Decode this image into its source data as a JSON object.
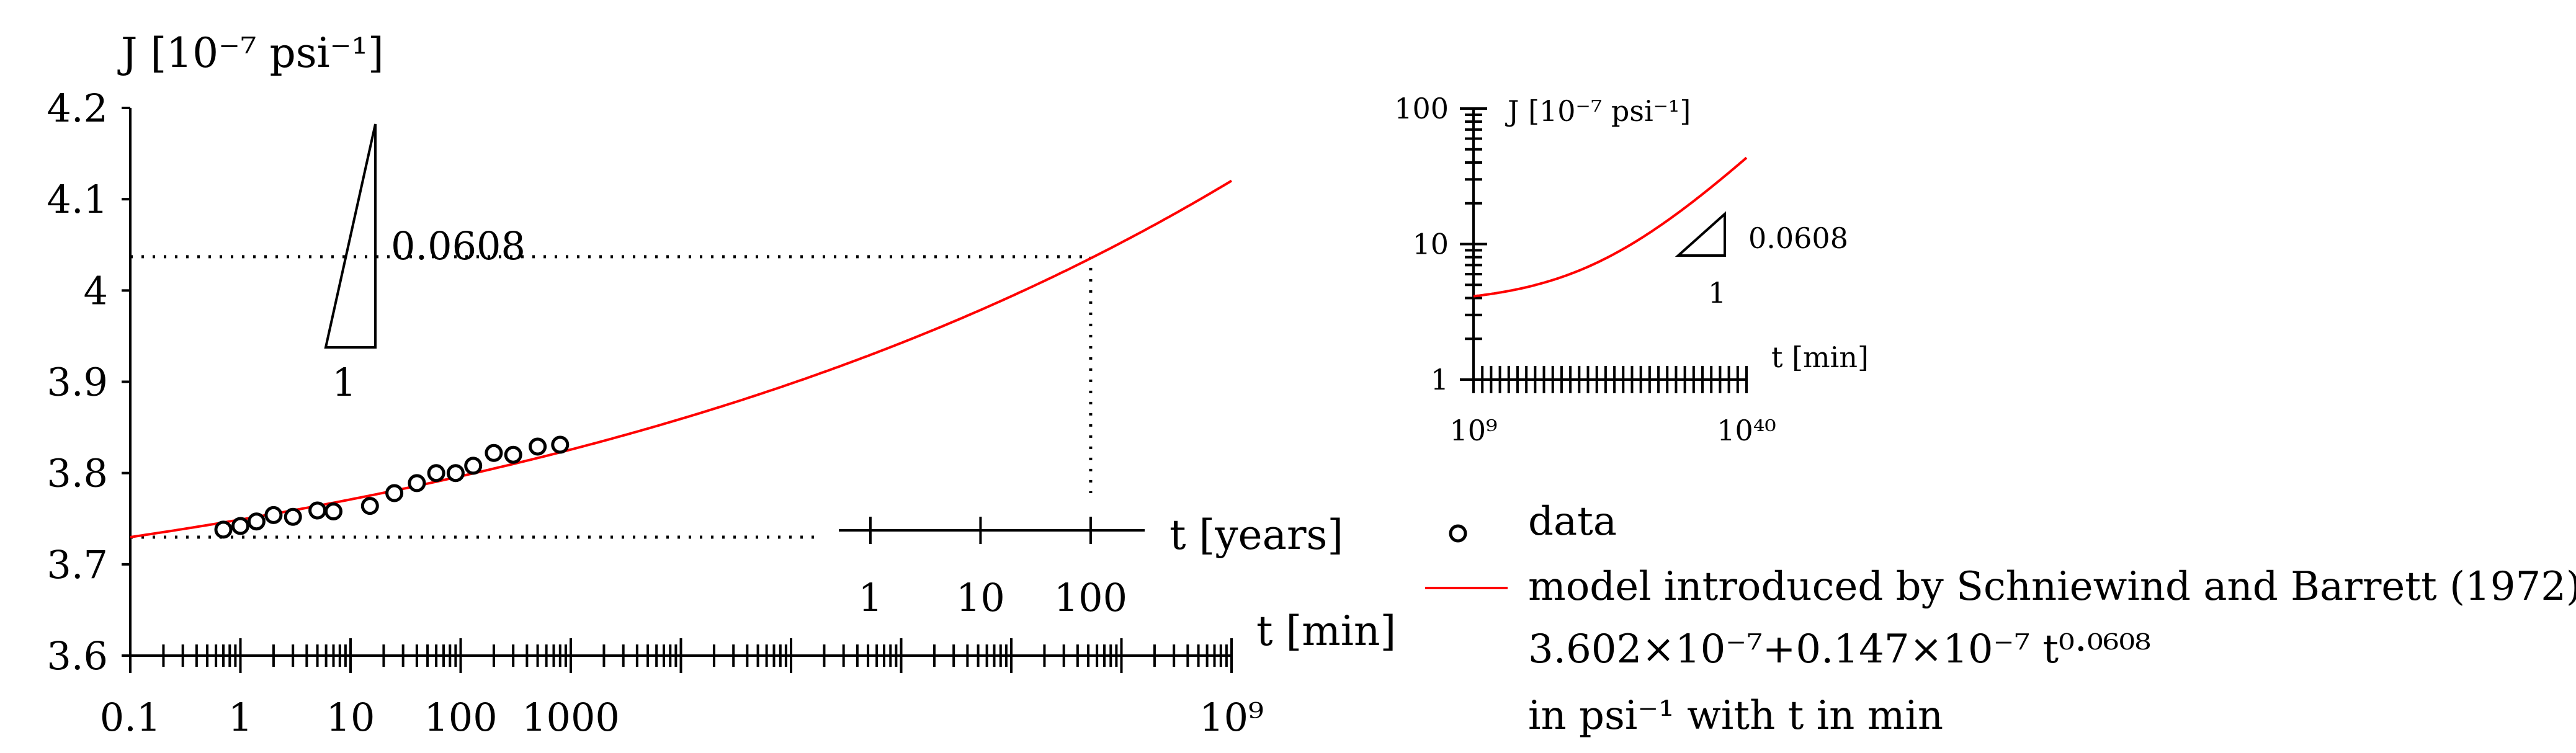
{
  "chart_data": [
    {
      "type": "scatter",
      "name": "main",
      "ylabel": "J [10⁻⁷ psi⁻¹]",
      "xlabel": "t [min]",
      "xscale": "log",
      "xlim": [
        0.1,
        1000000000
      ],
      "ylim": [
        3.6,
        4.2
      ],
      "yticks": [
        3.6,
        3.7,
        3.8,
        3.9,
        4.0,
        4.1,
        4.2
      ],
      "ytick_labels": [
        "3.6",
        "3.7",
        "3.8",
        "3.9",
        "4",
        "4.1",
        "4.2"
      ],
      "xtick_labels": [
        {
          "value": 0.1,
          "label": "0.1"
        },
        {
          "value": 1,
          "label": "1"
        },
        {
          "value": 10,
          "label": "10"
        },
        {
          "value": 100,
          "label": "100"
        },
        {
          "value": 1000,
          "label": "1000"
        },
        {
          "value": 1000000000,
          "label": "10⁹"
        }
      ],
      "data_points": {
        "t": [
          0.7,
          1.0,
          1.4,
          2.0,
          3.0,
          5.0,
          7.0,
          15,
          25,
          40,
          60,
          90,
          130,
          200,
          300,
          500,
          800
        ],
        "J": [
          3.738,
          3.742,
          3.747,
          3.754,
          3.752,
          3.759,
          3.758,
          3.764,
          3.778,
          3.789,
          3.8,
          3.8,
          3.808,
          3.822,
          3.82,
          3.829,
          3.831
        ]
      },
      "model": {
        "a": 3.602,
        "b": 0.147,
        "n": 0.0608
      },
      "reference_point": {
        "t": 52560000,
        "J": 4.037
      },
      "slope_annotation": {
        "rise": "0.0608",
        "run": "1"
      },
      "secondary_axis": {
        "label": "t [years]",
        "ticks": [
          {
            "years": 1,
            "label": "1"
          },
          {
            "years": 10,
            "label": "10"
          },
          {
            "years": 100,
            "label": "100"
          }
        ]
      }
    },
    {
      "type": "line",
      "name": "inset",
      "ylabel": "J [10⁻⁷ psi⁻¹]",
      "xlabel": "t [min]",
      "xscale": "log",
      "yscale": "log",
      "xlim": [
        1000000000.0,
        1e+40
      ],
      "ylim": [
        1,
        100
      ],
      "xtick_labels": [
        {
          "value": 1000000000.0,
          "label": "10⁹"
        },
        {
          "value": 1e+40,
          "label": "10⁴⁰"
        }
      ],
      "ytick_labels": [
        {
          "value": 1,
          "label": "1"
        },
        {
          "value": 10,
          "label": "10"
        },
        {
          "value": 100,
          "label": "100"
        }
      ],
      "slope_annotation": {
        "rise": "0.0608",
        "run": "1"
      }
    }
  ],
  "legend": {
    "data_label": "data",
    "model_label": "model introduced by Schniewind and Barrett (1972)",
    "formula_line": "3.602×10⁻⁷+0.147×10⁻⁷ t⁰·⁰⁶⁰⁸",
    "units_line": "in psi⁻¹ with t in min"
  },
  "colors": {
    "model": "#ff0000",
    "axis": "#000000",
    "marker_fill": "#ffffff"
  }
}
